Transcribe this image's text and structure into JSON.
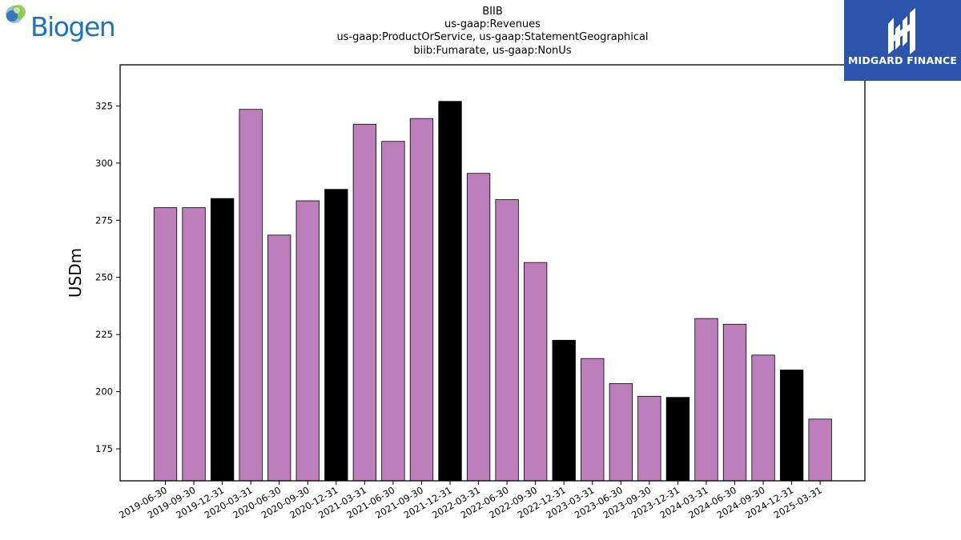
{
  "header": {
    "title_lines": [
      "BIIB",
      "us-gaap:Revenues",
      "us-gaap:ProductOrService, us-gaap:StatementGeographical",
      "biib:Fumarate, us-gaap:NonUs"
    ]
  },
  "logos": {
    "left": {
      "text": "Biogen",
      "icon": "biogen-globe-icon",
      "color": "#1f74b9"
    },
    "right": {
      "text": "MIDGARD FINANCE",
      "icon": "midgard-mark-icon",
      "background": "#2b55ad"
    }
  },
  "chart_data": {
    "type": "bar",
    "title": "BIIB\nus-gaap:Revenues\nus-gaap:ProductOrService, us-gaap:StatementGeographical\nbiib:Fumarate, us-gaap:NonUs",
    "xlabel": "",
    "ylabel": "USDm",
    "ylim": [
      161,
      343
    ],
    "yticks": [
      175,
      200,
      225,
      250,
      275,
      300,
      325
    ],
    "grid": false,
    "colors": {
      "quarter": "#bc7fbc",
      "year_end": "#000000",
      "edge": "#000000"
    },
    "categories": [
      "2019-06-30",
      "2019-09-30",
      "2019-12-31",
      "2020-03-31",
      "2020-06-30",
      "2020-09-30",
      "2020-12-31",
      "2021-03-31",
      "2021-06-30",
      "2021-09-30",
      "2021-12-31",
      "2022-03-31",
      "2022-06-30",
      "2022-09-30",
      "2022-12-31",
      "2023-03-31",
      "2023-06-30",
      "2023-09-30",
      "2023-12-31",
      "2024-03-31",
      "2024-06-30",
      "2024-09-30",
      "2024-12-31",
      "2025-03-31"
    ],
    "values": [
      280.5,
      280.5,
      284.5,
      323.5,
      268.5,
      283.5,
      288.5,
      317.0,
      309.5,
      319.5,
      327.0,
      295.5,
      284.0,
      256.5,
      222.5,
      214.5,
      203.5,
      198.0,
      197.5,
      232.0,
      229.5,
      216.0,
      209.5,
      188.0
    ],
    "year_end": [
      false,
      false,
      true,
      false,
      false,
      false,
      true,
      false,
      false,
      false,
      true,
      false,
      false,
      false,
      true,
      false,
      false,
      false,
      true,
      false,
      false,
      false,
      true,
      false
    ]
  }
}
